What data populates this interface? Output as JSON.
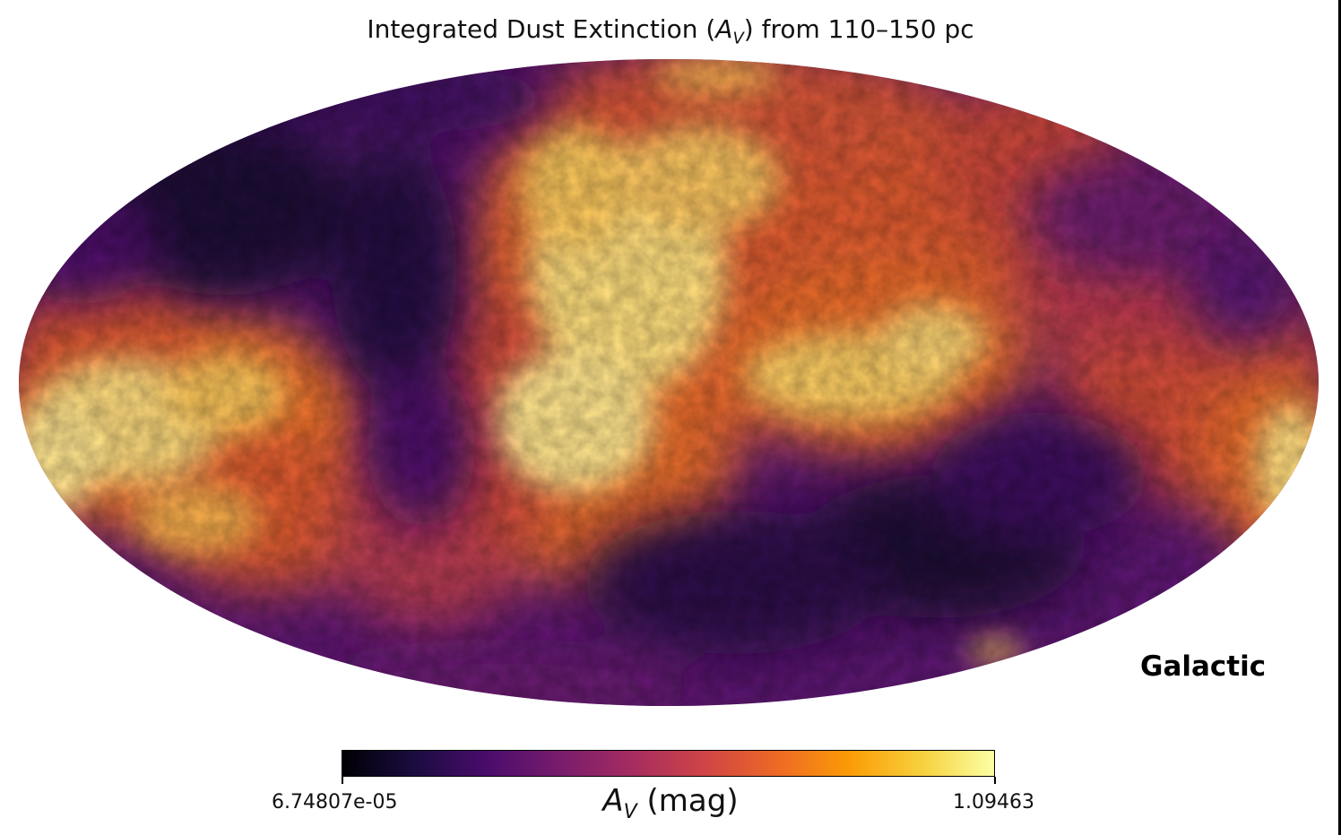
{
  "title": {
    "prefix": "Integrated Dust Extinction (",
    "symbol": "A",
    "subscript": "V",
    "suffix": ") from 110–150 pc"
  },
  "coordinate_system": "Galactic",
  "projection": "Mollweide",
  "colormap": {
    "name": "inferno",
    "stops": [
      "#000004",
      "#1b0c41",
      "#4a0c6b",
      "#781c6d",
      "#a52c60",
      "#cf4446",
      "#ed6925",
      "#fb9b06",
      "#f7d13d",
      "#fcffa4"
    ]
  },
  "colorbar": {
    "min_label": "6.74807e-05",
    "max_label": "1.09463",
    "min": 6.74807e-05,
    "max": 1.09463,
    "label_symbol": "A",
    "label_subscript": "V",
    "label_unit": " (mag)"
  }
}
